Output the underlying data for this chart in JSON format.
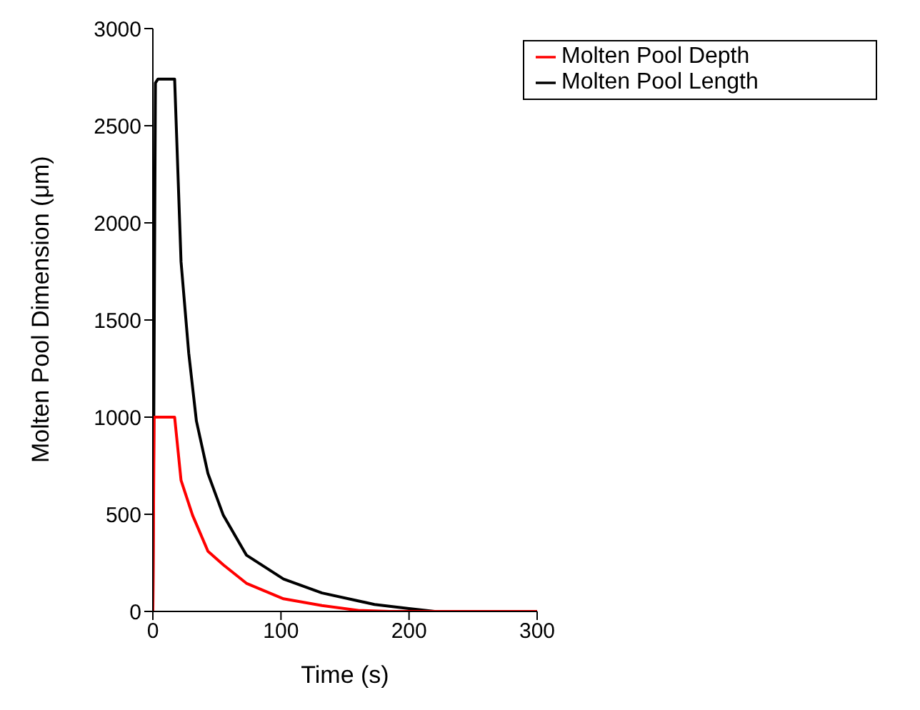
{
  "chart_data": {
    "type": "line",
    "xlabel": "Time (s)",
    "ylabel": "Molten Pool Dimension (μm)",
    "xlim": [
      0,
      300
    ],
    "xticks": [
      0,
      100,
      200,
      300
    ],
    "ylim": [
      0,
      3000
    ],
    "yticks": [
      0,
      500,
      1000,
      1500,
      2000,
      2500,
      3000
    ],
    "grid": false,
    "legend": "top right",
    "marker": "none",
    "line_style": "solid",
    "series": [
      {
        "name": "Molten Pool Length",
        "color": "#000000",
        "x": [
          0,
          2,
          4,
          17,
          22,
          28,
          34,
          43,
          55,
          73,
          102,
          132,
          173,
          200,
          220,
          300
        ],
        "values": [
          0,
          2720,
          2740,
          2740,
          1800,
          1330,
          980,
          710,
          495,
          290,
          167,
          95,
          36,
          15,
          0,
          0
        ]
      },
      {
        "name": "Molten Pool Depth",
        "color": "#ff0000",
        "x": [
          0,
          1,
          17,
          22,
          31,
          43,
          55,
          73,
          102,
          132,
          161,
          185,
          300
        ],
        "values": [
          0,
          1000,
          1000,
          675,
          495,
          310,
          240,
          145,
          65,
          30,
          5,
          0,
          0
        ]
      }
    ]
  }
}
